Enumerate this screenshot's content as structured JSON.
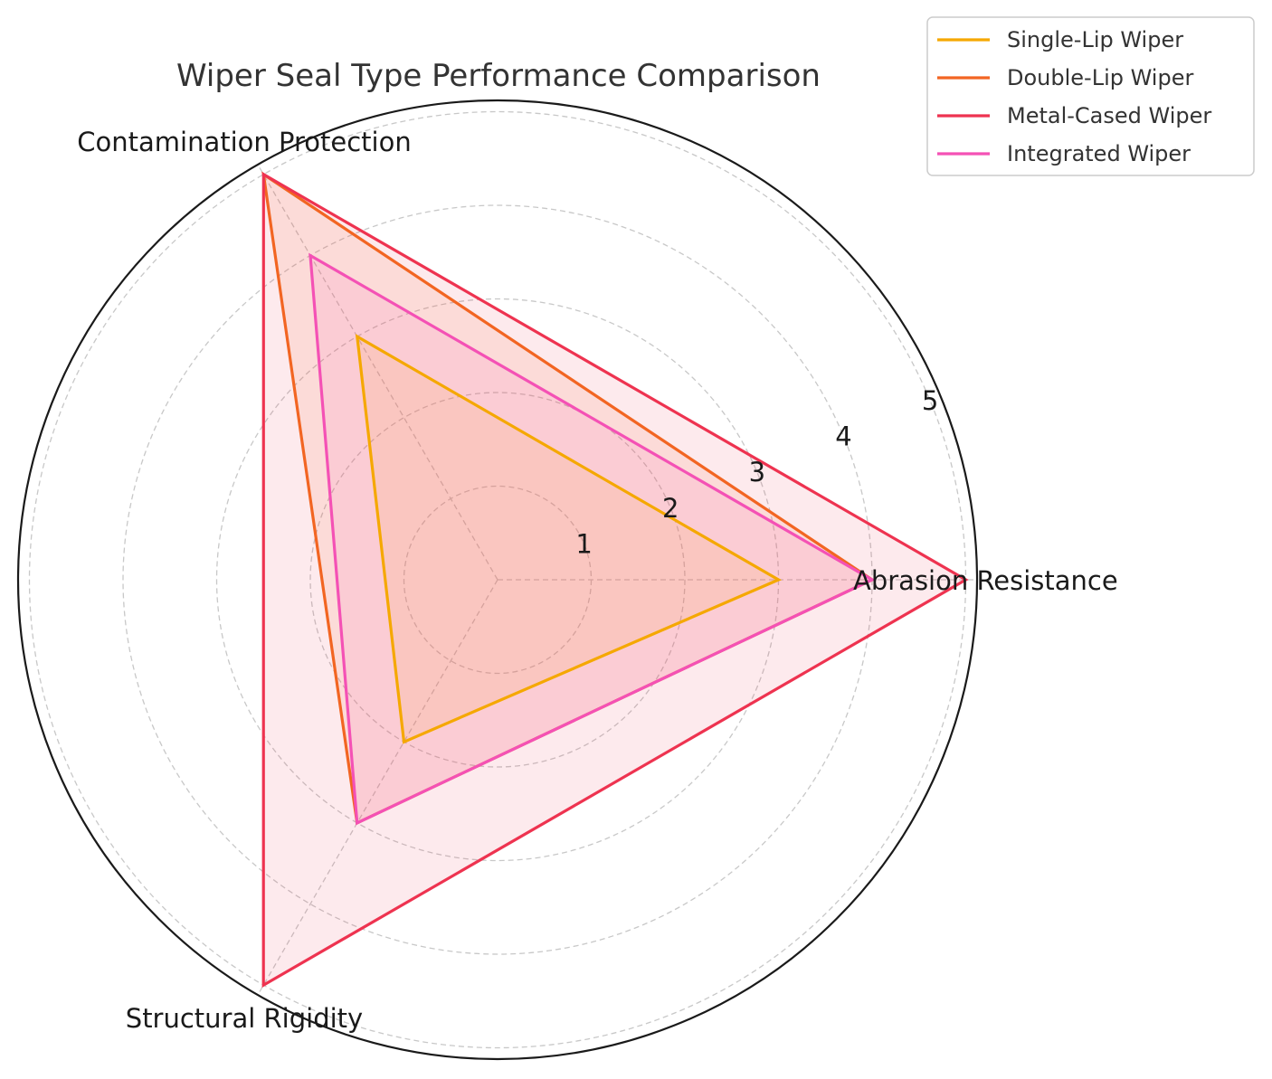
{
  "chart_data": {
    "type": "radar",
    "title": "Wiper Seal Type Performance Comparison",
    "axes": [
      "Abrasion Resistance",
      "Contamination Protection",
      "Structural Rigidity"
    ],
    "r_ticks": [
      "1",
      "2",
      "3",
      "4",
      "5"
    ],
    "r_range": [
      0,
      5
    ],
    "grid": true,
    "legend_position": "top-right",
    "series": [
      {
        "name": "Single-Lip Wiper",
        "values": [
          3,
          3,
          2
        ],
        "color": "#f5a800"
      },
      {
        "name": "Double-Lip Wiper",
        "values": [
          4,
          5,
          3
        ],
        "color": "#f26522"
      },
      {
        "name": "Metal-Cased Wiper",
        "values": [
          5,
          5,
          5
        ],
        "color": "#ee3350"
      },
      {
        "name": "Integrated Wiper",
        "values": [
          4,
          4,
          3
        ],
        "color": "#f451b5"
      }
    ]
  }
}
